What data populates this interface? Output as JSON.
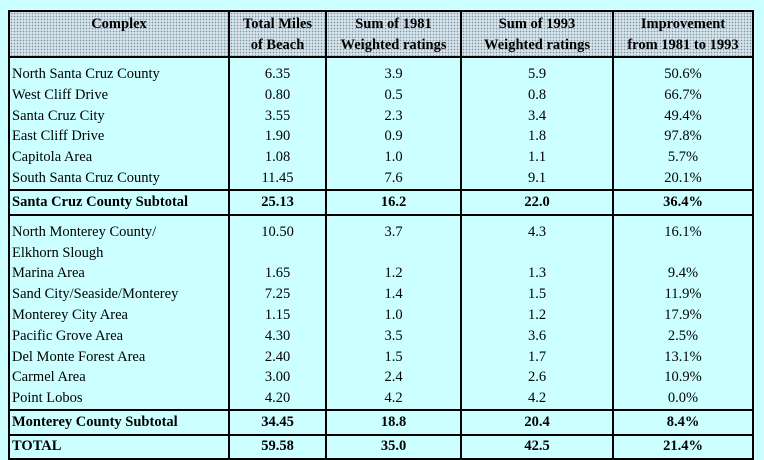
{
  "table": {
    "headers": [
      [
        "Complex"
      ],
      [
        "Total Miles",
        "of Beach"
      ],
      [
        "Sum of 1981",
        "Weighted ratings"
      ],
      [
        "Sum of 1993",
        "Weighted ratings"
      ],
      [
        "Improvement",
        "from 1981 to 1993"
      ]
    ],
    "groups": [
      {
        "rows": [
          {
            "name": [
              "North Santa Cruz County"
            ],
            "miles": "6.35",
            "s1981": "3.9",
            "s1993": "5.9",
            "improvement": "50.6%"
          },
          {
            "name": [
              "West Cliff Drive"
            ],
            "miles": "0.80",
            "s1981": "0.5",
            "s1993": "0.8",
            "improvement": "66.7%"
          },
          {
            "name": [
              "Santa Cruz City"
            ],
            "miles": "3.55",
            "s1981": "2.3",
            "s1993": "3.4",
            "improvement": "49.4%"
          },
          {
            "name": [
              "East Cliff Drive"
            ],
            "miles": "1.90",
            "s1981": "0.9",
            "s1993": "1.8",
            "improvement": "97.8%"
          },
          {
            "name": [
              "Capitola Area"
            ],
            "miles": "1.08",
            "s1981": "1.0",
            "s1993": "1.1",
            "improvement": "5.7%"
          },
          {
            "name": [
              "South Santa Cruz County"
            ],
            "miles": "11.45",
            "s1981": "7.6",
            "s1993": "9.1",
            "improvement": "20.1%"
          }
        ],
        "subtotal": {
          "name": "Santa Cruz County Subtotal",
          "miles": "25.13",
          "s1981": "16.2",
          "s1993": "22.0",
          "improvement": "36.4%"
        }
      },
      {
        "rows": [
          {
            "name": [
              "North Monterey County/",
              "Elkhorn Slough"
            ],
            "miles": "10.50",
            "s1981": "3.7",
            "s1993": "4.3",
            "improvement": "16.1%"
          },
          {
            "name": [
              "Marina Area"
            ],
            "miles": "1.65",
            "s1981": "1.2",
            "s1993": "1.3",
            "improvement": "9.4%"
          },
          {
            "name": [
              "Sand City/Seaside/Monterey"
            ],
            "miles": "7.25",
            "s1981": "1.4",
            "s1993": "1.5",
            "improvement": "11.9%"
          },
          {
            "name": [
              "Monterey City Area"
            ],
            "miles": "1.15",
            "s1981": "1.0",
            "s1993": "1.2",
            "improvement": "17.9%"
          },
          {
            "name": [
              "Pacific Grove Area"
            ],
            "miles": "4.30",
            "s1981": "3.5",
            "s1993": "3.6",
            "improvement": "2.5%"
          },
          {
            "name": [
              "Del Monte Forest Area"
            ],
            "miles": "2.40",
            "s1981": "1.5",
            "s1993": "1.7",
            "improvement": "13.1%"
          },
          {
            "name": [
              "Carmel Area"
            ],
            "miles": "3.00",
            "s1981": "2.4",
            "s1993": "2.6",
            "improvement": "10.9%"
          },
          {
            "name": [
              "Point Lobos"
            ],
            "miles": "4.20",
            "s1981": "4.2",
            "s1993": "4.2",
            "improvement": "0.0%"
          }
        ],
        "subtotal": {
          "name": "Monterey County Subtotal",
          "miles": "34.45",
          "s1981": "18.8",
          "s1993": "20.4",
          "improvement": "8.4%"
        }
      }
    ],
    "total": {
      "name": "TOTAL",
      "miles": "59.58",
      "s1981": "35.0",
      "s1993": "42.5",
      "improvement": "21.4%"
    }
  }
}
